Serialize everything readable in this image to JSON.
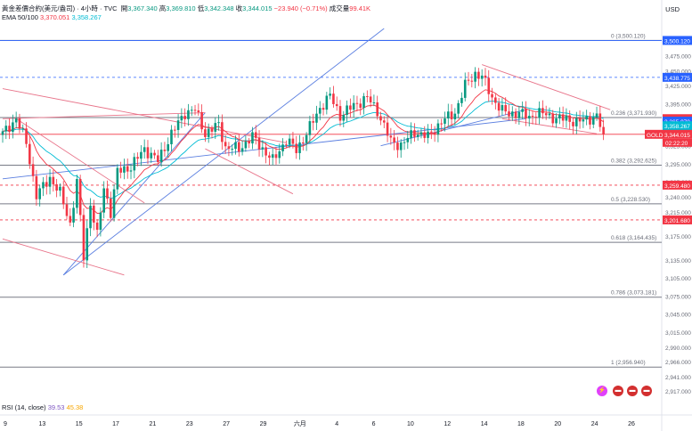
{
  "header": {
    "symbol_line": "黃金差價合約(美元/盎司) · 4小時 · TVC",
    "open_label": "開",
    "open": "3,367.340",
    "high_label": "高",
    "high": "3,369.810",
    "low_label": "低",
    "low": "3,342.348",
    "close_label": "收",
    "close": "3,344.015",
    "change": "−23.940 (−0.71%)",
    "volume_label": "成交量",
    "volume": "99.41K",
    "ema_label": "EMA 50/100",
    "ema50": "3,370.051",
    "ema100": "3,358.267"
  },
  "currency": "USD",
  "rsi": {
    "label": "RSI (14, close)",
    "v1": "39.53",
    "v2": "45.38"
  },
  "symbol_tag": "GOLD",
  "countdown": "02:22:20",
  "colors": {
    "up": "#089981",
    "down": "#f23645",
    "ema50": "#f23645",
    "ema100": "#00bcd4",
    "trend_blue": "#5b7fe0",
    "trend_red": "#e8748a"
  },
  "chart_data": {
    "type": "candlestick",
    "ylim": [
      2898,
      3520
    ],
    "y_ticks": [
      "3,475.000",
      "3,450.000",
      "3,425.000",
      "3,395.000",
      "3,355.000",
      "3,325.000",
      "3,295.000",
      "3,265.000",
      "3,240.000",
      "3,215.000",
      "3,175.000",
      "3,135.000",
      "3,105.000",
      "3,075.000",
      "3,045.000",
      "3,015.000",
      "2,990.000",
      "2,966.000",
      "2,941.000",
      "2,917.000"
    ],
    "x_ticks": [
      "9",
      "13",
      "15",
      "17",
      "21",
      "23",
      "27",
      "29",
      "六月",
      "4",
      "6",
      "10",
      "12",
      "14",
      "18",
      "20",
      "24",
      "26"
    ],
    "price_labels": [
      {
        "text": "3,500.120",
        "value": 3500.12,
        "color": "#2962ff",
        "style": "solid"
      },
      {
        "text": "3,438.775",
        "value": 3438.775,
        "color": "#2962ff",
        "style": "dashed"
      },
      {
        "text": "3,370.051",
        "value": 3370.051,
        "color": "#f23645",
        "style": "none"
      },
      {
        "text": "3,365.970",
        "value": 3365.97,
        "color": "#2962ff",
        "style": "none"
      },
      {
        "text": "3,358.267",
        "value": 3358.267,
        "color": "#00bcd4",
        "style": "none"
      },
      {
        "text": "3,344.015",
        "value": 3344.015,
        "color": "#f23645",
        "style": "solid"
      },
      {
        "text": "3,259.480",
        "value": 3259.48,
        "color": "#f23645",
        "style": "dashed"
      },
      {
        "text": "3,201.680",
        "value": 3201.68,
        "color": "#f23645",
        "style": "dashed"
      }
    ],
    "fib_levels": [
      {
        "label": "0 (3,500.120)",
        "value": 3500.12
      },
      {
        "label": "0.236 (3,371.930)",
        "value": 3371.93
      },
      {
        "label": "0.382 (3,292.625)",
        "value": 3292.625
      },
      {
        "label": "0.5 (3,228.530)",
        "value": 3228.53
      },
      {
        "label": "0.618 (3,164.435)",
        "value": 3164.435
      },
      {
        "label": "0.786 (3,073.181)",
        "value": 3073.181
      },
      {
        "label": "1 (2,956.940)",
        "value": 2956.94
      }
    ],
    "anchors": [
      [
        0,
        3345
      ],
      [
        4,
        3370
      ],
      [
        7,
        3330
      ],
      [
        10,
        3242
      ],
      [
        14,
        3272
      ],
      [
        17,
        3246
      ],
      [
        20,
        3195
      ],
      [
        22,
        3265
      ],
      [
        24,
        3140
      ],
      [
        26,
        3230
      ],
      [
        28,
        3175
      ],
      [
        30,
        3255
      ],
      [
        32,
        3215
      ],
      [
        34,
        3282
      ],
      [
        38,
        3290
      ],
      [
        42,
        3320
      ],
      [
        46,
        3300
      ],
      [
        50,
        3345
      ],
      [
        54,
        3380
      ],
      [
        57,
        3385
      ],
      [
        60,
        3345
      ],
      [
        64,
        3360
      ],
      [
        66,
        3322
      ],
      [
        70,
        3320
      ],
      [
        74,
        3340
      ],
      [
        77,
        3320
      ],
      [
        80,
        3300
      ],
      [
        84,
        3335
      ],
      [
        87,
        3318
      ],
      [
        90,
        3345
      ],
      [
        94,
        3388
      ],
      [
        97,
        3408
      ],
      [
        100,
        3375
      ],
      [
        104,
        3392
      ],
      [
        108,
        3405
      ],
      [
        111,
        3383
      ],
      [
        115,
        3332
      ],
      [
        118,
        3326
      ],
      [
        122,
        3348
      ],
      [
        126,
        3340
      ],
      [
        130,
        3365
      ],
      [
        134,
        3380
      ],
      [
        137,
        3425
      ],
      [
        140,
        3445
      ],
      [
        142,
        3440
      ],
      [
        145,
        3405
      ],
      [
        148,
        3383
      ],
      [
        150,
        3378
      ],
      [
        153,
        3380
      ],
      [
        156,
        3372
      ],
      [
        158,
        3380
      ],
      [
        161,
        3377
      ],
      [
        164,
        3370
      ],
      [
        167,
        3370
      ],
      [
        170,
        3364
      ],
      [
        173,
        3369
      ],
      [
        176,
        3374
      ],
      [
        178,
        3344
      ]
    ],
    "lows_overlay": [
      [
        16,
        3108
      ],
      [
        27,
        3180
      ],
      [
        48,
        3320
      ],
      [
        82,
        3292
      ]
    ]
  }
}
